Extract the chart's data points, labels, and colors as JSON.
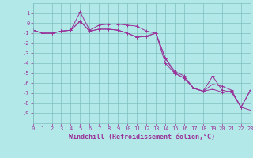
{
  "xlabel": "Windchill (Refroidissement éolien,°C)",
  "bg_color": "#b2e8e8",
  "grid_color": "#7fbfbf",
  "line_color": "#993399",
  "x_hours": [
    0,
    1,
    2,
    3,
    4,
    5,
    6,
    7,
    8,
    9,
    10,
    11,
    12,
    13,
    14,
    15,
    16,
    17,
    18,
    19,
    20,
    21,
    22,
    23
  ],
  "series1": [
    -0.7,
    -1.0,
    -1.0,
    -0.8,
    -0.7,
    1.1,
    -0.7,
    -0.2,
    -0.1,
    -0.1,
    -0.2,
    -0.3,
    -0.8,
    -1.0,
    -3.5,
    -4.8,
    -5.3,
    -6.5,
    -6.8,
    -5.3,
    -6.7,
    -6.9,
    -8.4,
    -8.7
  ],
  "series2": [
    -0.7,
    -1.0,
    -1.0,
    -0.8,
    -0.7,
    0.2,
    -0.8,
    -0.6,
    -0.6,
    -0.7,
    -1.0,
    -1.4,
    -1.3,
    -1.0,
    -3.5,
    -5.0,
    -5.5,
    -6.5,
    -6.8,
    -6.6,
    -6.9,
    -6.8,
    -8.4,
    -6.7
  ],
  "series3": [
    -0.7,
    -1.0,
    -1.0,
    -0.8,
    -0.7,
    0.2,
    -0.8,
    -0.6,
    -0.6,
    -0.7,
    -1.0,
    -1.4,
    -1.3,
    -1.0,
    -4.0,
    -5.0,
    -5.5,
    -6.5,
    -6.8,
    -6.1,
    -6.3,
    -6.7,
    -8.4,
    -6.7
  ],
  "ylim": [
    -10,
    2
  ],
  "xlim": [
    0,
    23
  ],
  "yticks": [
    1,
    0,
    -1,
    -2,
    -3,
    -4,
    -5,
    -6,
    -7,
    -8,
    -9
  ],
  "xticks": [
    0,
    1,
    2,
    3,
    4,
    5,
    6,
    7,
    8,
    9,
    10,
    11,
    12,
    13,
    14,
    15,
    16,
    17,
    18,
    19,
    20,
    21,
    22,
    23
  ],
  "tick_fontsize": 5.0,
  "xlabel_fontsize": 6.0,
  "lw": 0.7,
  "ms": 2.5
}
